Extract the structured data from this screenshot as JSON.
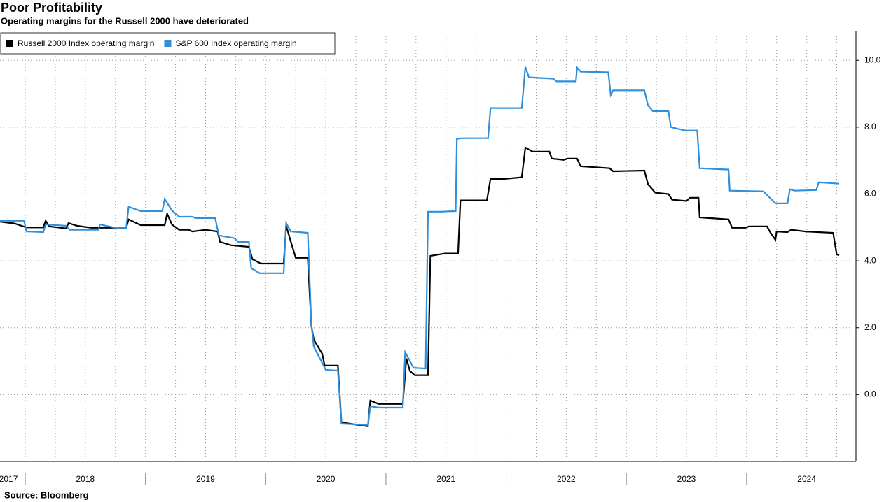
{
  "chart_data": {
    "type": "line",
    "title": "Poor Profitability",
    "subtitle": "Operating margins for the Russell 2000 have deteriorated",
    "source": "Source: Bloomberg",
    "legend": "top-left",
    "grid": true,
    "xlim": [
      2017.79,
      2024.91
    ],
    "ylim": [
      -2,
      10.8
    ],
    "yticks": [
      {
        "value": 0,
        "label": "0.0"
      },
      {
        "value": 2,
        "label": "2.0"
      },
      {
        "value": 4,
        "label": "4.0"
      },
      {
        "value": 6,
        "label": "6.0"
      },
      {
        "value": 8,
        "label": "8.0"
      },
      {
        "value": 10,
        "label": "10.0"
      }
    ],
    "xticks": [
      {
        "value": 2017.86,
        "label": "2017"
      },
      {
        "value": 2018.5,
        "label": "2018"
      },
      {
        "value": 2019.5,
        "label": "2019"
      },
      {
        "value": 2020.5,
        "label": "2020"
      },
      {
        "value": 2021.5,
        "label": "2021"
      },
      {
        "value": 2022.5,
        "label": "2022"
      },
      {
        "value": 2023.5,
        "label": "2023"
      },
      {
        "value": 2024.5,
        "label": "2024"
      }
    ],
    "xgrid": [
      2018,
      2018.25,
      2018.5,
      2018.75,
      2019,
      2019.25,
      2019.5,
      2019.75,
      2020,
      2020.25,
      2020.5,
      2020.75,
      2021,
      2021.25,
      2021.5,
      2021.75,
      2022,
      2022.25,
      2022.5,
      2022.75,
      2023,
      2023.25,
      2023.5,
      2023.75,
      2024,
      2024.25,
      2024.5,
      2024.75
    ],
    "series": [
      {
        "name": "Russell 2000 Index operating margin",
        "color": "#000000",
        "x": [
          2017.79,
          2017.91,
          2018.01,
          2018.15,
          2018.17,
          2018.2,
          2018.34,
          2018.36,
          2018.43,
          2018.55,
          2018.84,
          2018.86,
          2018.96,
          2019.16,
          2019.18,
          2019.22,
          2019.28,
          2019.36,
          2019.39,
          2019.5,
          2019.6,
          2019.62,
          2019.71,
          2019.86,
          2019.89,
          2019.96,
          2020.15,
          2020.17,
          2020.21,
          2020.25,
          2020.35,
          2020.38,
          2020.4,
          2020.47,
          2020.49,
          2020.6,
          2020.63,
          2020.7,
          2020.85,
          2020.87,
          2020.94,
          2021.14,
          2021.17,
          2021.2,
          2021.24,
          2021.35,
          2021.37,
          2021.49,
          2021.6,
          2021.62,
          2021.84,
          2021.87,
          2021.98,
          2022.13,
          2022.16,
          2022.22,
          2022.25,
          2022.36,
          2022.38,
          2022.48,
          2022.51,
          2022.59,
          2022.62,
          2022.86,
          2022.89,
          2023.15,
          2023.18,
          2023.24,
          2023.35,
          2023.38,
          2023.5,
          2023.53,
          2023.6,
          2023.61,
          2023.85,
          2023.88,
          2023.99,
          2024.02,
          2024.17,
          2024.2,
          2024.24,
          2024.25,
          2024.34,
          2024.37,
          2024.49,
          2024.72,
          2024.75,
          2024.77
        ],
        "values": [
          5.17,
          5.12,
          5.0,
          5.0,
          5.2,
          5.03,
          4.97,
          5.13,
          5.05,
          4.99,
          4.99,
          5.24,
          5.07,
          5.07,
          5.41,
          5.09,
          4.93,
          4.93,
          4.88,
          4.93,
          4.88,
          4.57,
          4.47,
          4.42,
          4.05,
          3.92,
          3.92,
          5.05,
          4.57,
          4.09,
          4.09,
          2.06,
          1.64,
          1.22,
          0.87,
          0.87,
          -0.83,
          -0.87,
          -0.95,
          -0.18,
          -0.28,
          -0.28,
          1.08,
          0.7,
          0.58,
          0.58,
          4.15,
          4.22,
          4.22,
          5.81,
          5.81,
          6.45,
          6.45,
          6.5,
          7.39,
          7.27,
          7.27,
          7.27,
          7.06,
          7.02,
          7.06,
          7.06,
          6.83,
          6.77,
          6.68,
          6.7,
          6.29,
          6.04,
          6.0,
          5.83,
          5.79,
          5.89,
          5.89,
          5.3,
          5.24,
          4.99,
          4.99,
          5.03,
          5.03,
          4.84,
          4.63,
          4.88,
          4.86,
          4.93,
          4.88,
          4.84,
          4.19,
          4.17
        ]
      },
      {
        "name": "S&P 600 Index operating margin",
        "color": "#2f8fdc",
        "x": [
          2017.79,
          2017.99,
          2018.01,
          2018.15,
          2018.17,
          2018.34,
          2018.37,
          2018.61,
          2018.62,
          2018.75,
          2018.84,
          2018.86,
          2018.96,
          2019.14,
          2019.16,
          2019.22,
          2019.28,
          2019.39,
          2019.42,
          2019.58,
          2019.61,
          2019.74,
          2019.77,
          2019.86,
          2019.88,
          2019.95,
          2020.15,
          2020.17,
          2020.21,
          2020.35,
          2020.38,
          2020.4,
          2020.5,
          2020.6,
          2020.63,
          2020.85,
          2020.87,
          2020.94,
          2021.14,
          2021.16,
          2021.23,
          2021.33,
          2021.35,
          2021.46,
          2021.58,
          2021.59,
          2021.63,
          2021.85,
          2021.87,
          2022.13,
          2022.16,
          2022.19,
          2022.39,
          2022.42,
          2022.58,
          2022.59,
          2022.62,
          2022.85,
          2022.87,
          2022.89,
          2023.15,
          2023.18,
          2023.22,
          2023.35,
          2023.37,
          2023.49,
          2023.59,
          2023.61,
          2023.85,
          2023.86,
          2024.14,
          2024.17,
          2024.24,
          2024.34,
          2024.36,
          2024.4,
          2024.58,
          2024.6,
          2024.77
        ],
        "values": [
          5.2,
          5.2,
          4.88,
          4.86,
          5.09,
          5.05,
          4.93,
          4.93,
          5.09,
          4.99,
          4.99,
          5.62,
          5.49,
          5.49,
          5.85,
          5.51,
          5.32,
          5.32,
          5.28,
          5.28,
          4.76,
          4.68,
          4.57,
          4.57,
          3.78,
          3.63,
          3.63,
          5.13,
          4.88,
          4.84,
          2.12,
          1.43,
          0.74,
          0.72,
          -0.87,
          -0.91,
          -0.35,
          -0.39,
          -0.39,
          1.27,
          0.8,
          0.78,
          5.47,
          5.47,
          5.49,
          7.65,
          7.67,
          7.67,
          8.57,
          8.57,
          9.8,
          9.49,
          9.45,
          9.37,
          9.37,
          9.78,
          9.66,
          9.64,
          8.96,
          9.1,
          9.1,
          8.65,
          8.48,
          8.48,
          8.0,
          7.9,
          7.9,
          6.77,
          6.73,
          6.1,
          6.08,
          5.97,
          5.72,
          5.72,
          6.14,
          6.1,
          6.12,
          6.35,
          6.31
        ]
      }
    ]
  }
}
